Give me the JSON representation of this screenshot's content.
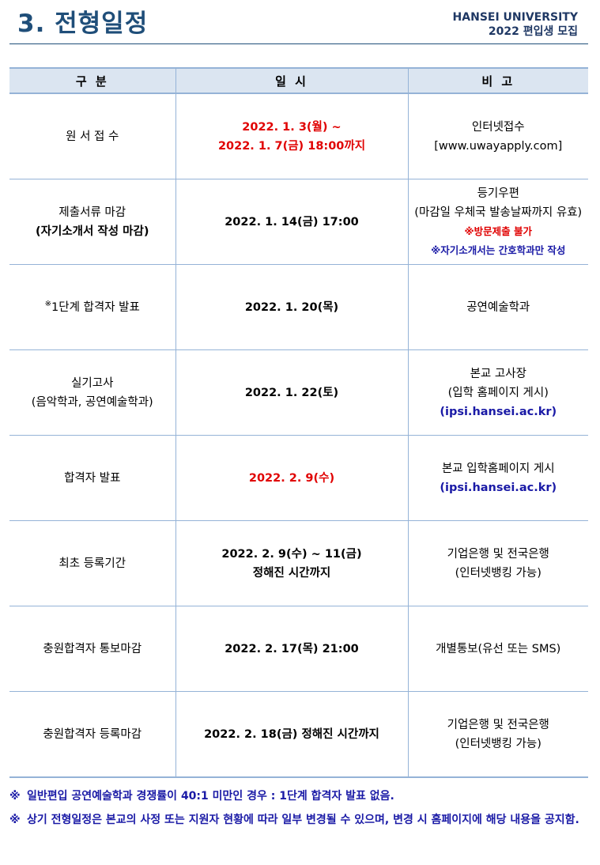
{
  "header": {
    "title": "3. 전형일정",
    "university": "HANSEI UNIVERSITY",
    "subtitle": "2022 편입생 모집"
  },
  "table": {
    "columns": [
      "구 분",
      "일 시",
      "비 고"
    ],
    "rows": [
      [
        [
          "원 서 접 수"
        ],
        [
          "2022. 1. 3(월) ~",
          "2022. 1. 7(금) 18:00까지"
        ],
        [
          "인터넷접수",
          "[www.uwayapply.com]"
        ]
      ],
      [
        [
          "제출서류 마감",
          "(자기소개서 작성 마감)"
        ],
        [
          "2022. 1. 14(금) 17:00"
        ],
        [
          "등기우편",
          "(마감일 우체국 발송날짜까지 유효)",
          "※방문제출 불가",
          "※자기소개서는 간호학과만 작성"
        ]
      ],
      [
        [
          "※",
          "1단계 합격자 발표"
        ],
        [
          "2022. 1. 20(목)"
        ],
        [
          "공연예술학과"
        ]
      ],
      [
        [
          "실기고사",
          "(음악학과, 공연예술학과)"
        ],
        [
          "2022. 1. 22(토)"
        ],
        [
          "본교 고사장",
          "(입학 홈페이지 게시)",
          "(ipsi.hansei.ac.kr)"
        ]
      ],
      [
        [
          "합격자 발표"
        ],
        [
          "2022. 2. 9(수)"
        ],
        [
          "본교 입학홈페이지 게시",
          "(ipsi.hansei.ac.kr)"
        ]
      ],
      [
        [
          "최초 등록기간"
        ],
        [
          "2022. 2. 9(수) ~ 11(금)",
          "정해진 시간까지"
        ],
        [
          "기업은행 및 전국은행",
          "(인터넷뱅킹 가능)"
        ]
      ],
      [
        [
          "충원합격자 통보마감"
        ],
        [
          "2022. 2. 17(목) 21:00"
        ],
        [
          "개별통보(유선 또는 SMS)"
        ]
      ],
      [
        [
          "충원합격자 등록마감"
        ],
        [
          "2022. 2. 18(금) 정해진 시간까지"
        ],
        [
          "기업은행 및 전국은행",
          "(인터넷뱅킹 가능)"
        ]
      ]
    ]
  },
  "notes": [
    {
      "mark": "※",
      "text": "일반편입 공연예술학과 경쟁률이 40:1 미만인 경우 : 1단계 합격자 발표 없음."
    },
    {
      "mark": "※",
      "text": "상기 전형일정은 본교의 사정 또는 지원자 현황에 따라 일부 변경될 수 있으며, 변경 시 홈페이지에 해당 내용을 공지함."
    }
  ]
}
